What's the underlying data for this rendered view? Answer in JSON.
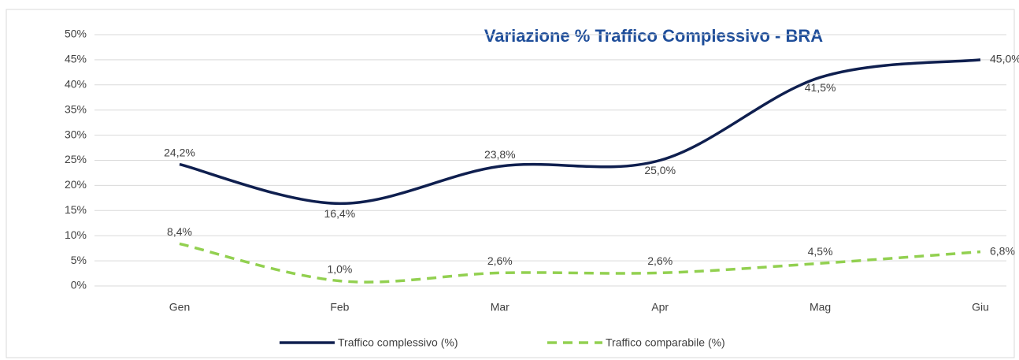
{
  "chart_data": {
    "type": "line",
    "title": "Variazione % Traffico Complessivo - BRA",
    "categories": [
      "Gen",
      "Feb",
      "Mar",
      "Apr",
      "Mag",
      "Giu"
    ],
    "series": [
      {
        "name": "Traffico complessivo (%)",
        "color": "#0f1f4f",
        "dash": false,
        "values": [
          24.2,
          16.4,
          23.8,
          25.0,
          41.5,
          45.0
        ],
        "value_labels": [
          "24,2%",
          "16,4%",
          "23,8%",
          "25,0%",
          "41,5%",
          "45,0%"
        ]
      },
      {
        "name": "Traffico comparabile (%)",
        "color": "#92d050",
        "dash": true,
        "values": [
          8.4,
          1.0,
          2.6,
          2.6,
          4.5,
          6.8
        ],
        "value_labels": [
          "8,4%",
          "1,0%",
          "2,6%",
          "2,6%",
          "4,5%",
          "6,8%"
        ]
      }
    ],
    "ylim": [
      0,
      50
    ],
    "yticks": [
      {
        "value": 0,
        "label": "0%"
      },
      {
        "value": 5,
        "label": "5%"
      },
      {
        "value": 10,
        "label": "10%"
      },
      {
        "value": 15,
        "label": "15%"
      },
      {
        "value": 20,
        "label": "20%"
      },
      {
        "value": 25,
        "label": "25%"
      },
      {
        "value": 30,
        "label": "30%"
      },
      {
        "value": 35,
        "label": "35%"
      },
      {
        "value": 40,
        "label": "40%"
      },
      {
        "value": 45,
        "label": "45%"
      },
      {
        "value": 50,
        "label": "50%"
      }
    ],
    "grid": true
  }
}
